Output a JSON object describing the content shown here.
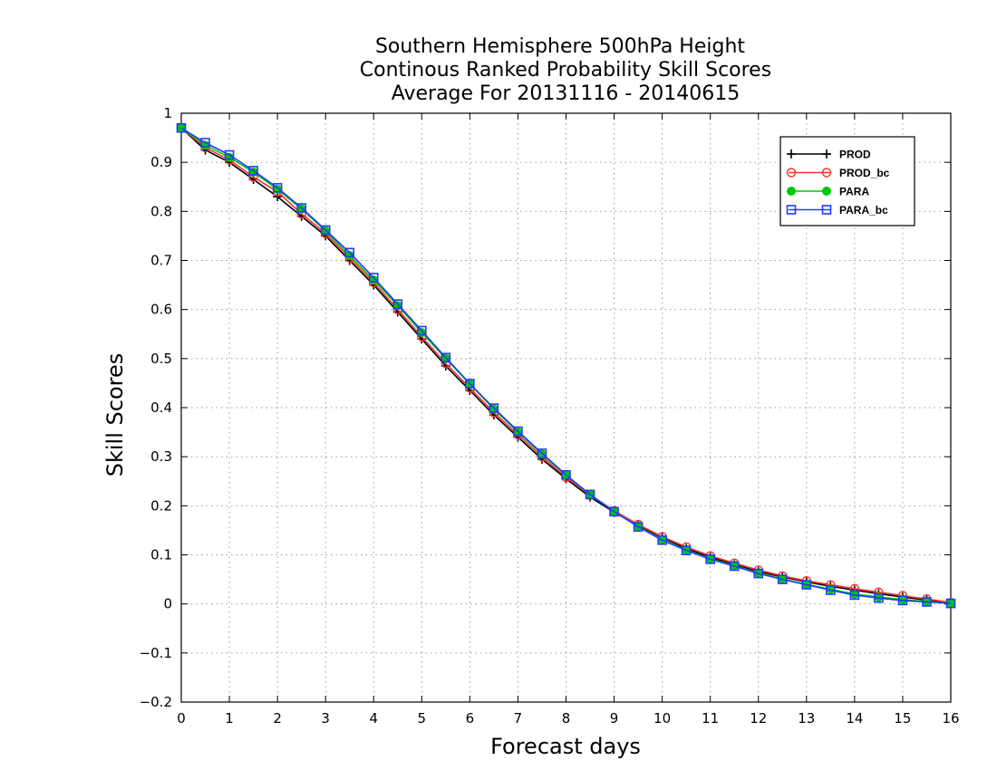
{
  "chart_data": {
    "type": "line",
    "title_lines": [
      "Southern Hemisphere 500hPa Height",
      "Continous Ranked Probability Skill Scores",
      "Average For 20131116 - 20140615"
    ],
    "xlabel": "Forecast days",
    "ylabel": "Skill Scores",
    "xlim": [
      0,
      16
    ],
    "ylim": [
      -0.2,
      1
    ],
    "x_ticks": [
      "0",
      "1",
      "2",
      "3",
      "4",
      "5",
      "6",
      "7",
      "8",
      "9",
      "10",
      "11",
      "12",
      "13",
      "14",
      "15",
      "16"
    ],
    "y_ticks": [
      "−0.2",
      "−0.1",
      "0",
      "0.1",
      "0.2",
      "0.3",
      "0.4",
      "0.5",
      "0.6",
      "0.7",
      "0.8",
      "0.9",
      "1"
    ],
    "grid": true,
    "legend_position": "top-right",
    "x": [
      0,
      0.5,
      1,
      1.5,
      2,
      2.5,
      3,
      3.5,
      4,
      4.5,
      5,
      5.5,
      6,
      6.5,
      7,
      7.5,
      8,
      8.5,
      9,
      9.5,
      10,
      10.5,
      11,
      11.5,
      12,
      12.5,
      13,
      13.5,
      14,
      14.5,
      15,
      15.5,
      16
    ],
    "series": [
      {
        "name": "PROD",
        "color": "#000000",
        "marker": "plus",
        "values": [
          0.97,
          0.925,
          0.9,
          0.865,
          0.83,
          0.79,
          0.75,
          0.7,
          0.65,
          0.595,
          0.54,
          0.485,
          0.435,
          0.385,
          0.34,
          0.295,
          0.255,
          0.218,
          0.187,
          0.16,
          0.135,
          0.113,
          0.095,
          0.08,
          0.066,
          0.055,
          0.045,
          0.036,
          0.028,
          0.021,
          0.014,
          0.008,
          0.002
        ]
      },
      {
        "name": "PROD_bc",
        "color": "#ff3030",
        "marker": "circle-open",
        "values": [
          0.97,
          0.93,
          0.905,
          0.87,
          0.84,
          0.795,
          0.755,
          0.705,
          0.655,
          0.6,
          0.545,
          0.49,
          0.44,
          0.39,
          0.345,
          0.3,
          0.258,
          0.222,
          0.19,
          0.162,
          0.137,
          0.116,
          0.098,
          0.083,
          0.069,
          0.057,
          0.047,
          0.039,
          0.031,
          0.024,
          0.017,
          0.01,
          0.003
        ]
      },
      {
        "name": "PARA",
        "color": "#00c800",
        "marker": "circle-filled",
        "values": [
          0.97,
          0.935,
          0.91,
          0.88,
          0.845,
          0.805,
          0.76,
          0.71,
          0.66,
          0.608,
          0.553,
          0.5,
          0.448,
          0.397,
          0.35,
          0.305,
          0.262,
          0.223,
          0.188,
          0.158,
          0.131,
          0.11,
          0.092,
          0.078,
          0.063,
          0.051,
          0.04,
          0.03,
          0.02,
          0.014,
          0.009,
          0.005,
          0.001
        ]
      },
      {
        "name": "PARA_bc",
        "color": "#1e3cff",
        "marker": "square-open",
        "values": [
          0.97,
          0.94,
          0.915,
          0.883,
          0.848,
          0.807,
          0.762,
          0.716,
          0.665,
          0.611,
          0.557,
          0.502,
          0.449,
          0.399,
          0.352,
          0.307,
          0.263,
          0.223,
          0.188,
          0.157,
          0.13,
          0.109,
          0.091,
          0.077,
          0.062,
          0.05,
          0.039,
          0.028,
          0.018,
          0.012,
          0.007,
          0.004,
          0.001
        ]
      }
    ]
  }
}
